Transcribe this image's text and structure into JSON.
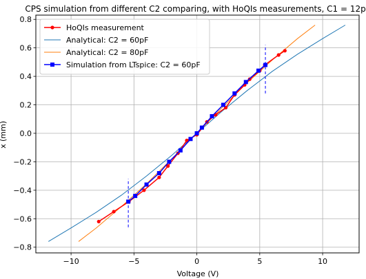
{
  "chart_data": {
    "type": "line",
    "title": "CPS simulation from different C2 comparing, with HoQIs measurements, C1 = 12pF",
    "xlabel": "Voltage (V)",
    "ylabel": "x (mm)",
    "xlim": [
      -12.8,
      12.9
    ],
    "ylim": [
      -0.84,
      0.83
    ],
    "xticks": [
      -10,
      -5,
      0,
      5,
      10
    ],
    "xtick_labels": [
      "−10",
      "−5",
      "0",
      "5",
      "10"
    ],
    "yticks": [
      -0.8,
      -0.6,
      -0.4,
      -0.2,
      0.0,
      0.2,
      0.4,
      0.6,
      0.8
    ],
    "ytick_labels": [
      "−0.8",
      "−0.6",
      "−0.4",
      "−0.2",
      "0.0",
      "0.2",
      "0.4",
      "0.6",
      "0.8"
    ],
    "grid": true,
    "legend_position": "top-left",
    "series": [
      {
        "name": "HoQIs measurement",
        "color": "#ff0000",
        "marker": "circle",
        "x": [
          -7.8,
          -6.6,
          -5.4,
          -4.2,
          -3.0,
          -2.3,
          -1.5,
          -0.8,
          0.0,
          0.8,
          1.5,
          2.3,
          3.0,
          3.8,
          4.2,
          5.0,
          5.4,
          6.5,
          7.0
        ],
        "y": [
          -0.62,
          -0.55,
          -0.48,
          -0.4,
          -0.31,
          -0.23,
          -0.14,
          -0.05,
          -0.01,
          0.08,
          0.13,
          0.18,
          0.27,
          0.34,
          0.38,
          0.44,
          0.48,
          0.55,
          0.58
        ]
      },
      {
        "name": "Analytical: C2 = 60pF",
        "color": "#1f77b4",
        "marker": "none",
        "x": [
          -11.8,
          -10,
          -8,
          -6,
          -4,
          -2,
          0,
          2,
          4,
          6,
          8,
          10,
          11.8
        ],
        "y": [
          -0.76,
          -0.665,
          -0.555,
          -0.435,
          -0.3,
          -0.155,
          0.0,
          0.155,
          0.3,
          0.435,
          0.555,
          0.665,
          0.76
        ]
      },
      {
        "name": "Analytical: C2 = 80pF",
        "color": "#ff7f0e",
        "marker": "none",
        "x": [
          -9.4,
          -8,
          -6,
          -4,
          -2,
          0,
          2,
          4,
          6,
          8,
          9.4
        ],
        "y": [
          -0.76,
          -0.665,
          -0.515,
          -0.355,
          -0.18,
          0.0,
          0.18,
          0.355,
          0.515,
          0.665,
          0.76
        ]
      },
      {
        "name": "Simulation from LTspice: C2 = 60pF",
        "color": "#0000ff",
        "marker": "square",
        "x": [
          -5.45,
          -4.9,
          -4.0,
          -3.0,
          -2.2,
          -1.3,
          -0.5,
          0.0,
          0.4,
          1.2,
          2.1,
          3.0,
          3.9,
          4.9,
          5.45
        ],
        "y": [
          -0.48,
          -0.44,
          -0.36,
          -0.28,
          -0.2,
          -0.12,
          -0.04,
          0.0,
          0.04,
          0.12,
          0.2,
          0.28,
          0.36,
          0.44,
          0.48
        ]
      }
    ],
    "vlines": [
      {
        "x": -5.45,
        "y": [
          -0.66,
          -0.32
        ],
        "color": "#0000ff",
        "style": "dashed"
      },
      {
        "x": 5.45,
        "y": [
          0.28,
          0.62
        ],
        "color": "#0000ff",
        "style": "dashed"
      }
    ]
  }
}
